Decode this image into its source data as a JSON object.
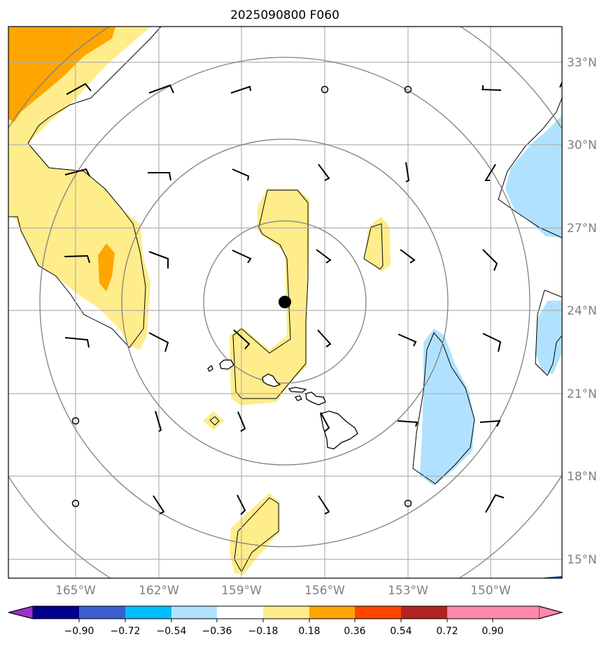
{
  "title": "2025090800 F060",
  "axes": {
    "lat_labels": [
      "33°N",
      "30°N",
      "27°N",
      "24°N",
      "21°N",
      "18°N",
      "15°N"
    ],
    "lon_labels": [
      "165°W",
      "162°W",
      "159°W",
      "156°W",
      "153°W",
      "150°W"
    ]
  },
  "colorbar": {
    "labels": [
      "−0.90",
      "−0.72",
      "−0.54",
      "−0.36",
      "−0.18",
      "0.18",
      "0.36",
      "0.54",
      "0.72",
      "0.90"
    ],
    "colors": [
      "#9932CC",
      "#00008B",
      "#3A5FCD",
      "#00BFFF",
      "#B0E2FF",
      "#FFFFFF",
      "#FFEC8B",
      "#FFA500",
      "#FF4500",
      "#B22222",
      "#FF88AA"
    ]
  },
  "field_colors": {
    "light_yellow": "#FFEC8B",
    "orange": "#FFA500",
    "light_blue": "#B0E2FF"
  },
  "storm_center": {
    "lat": 24.3,
    "lon": -157.4
  }
}
